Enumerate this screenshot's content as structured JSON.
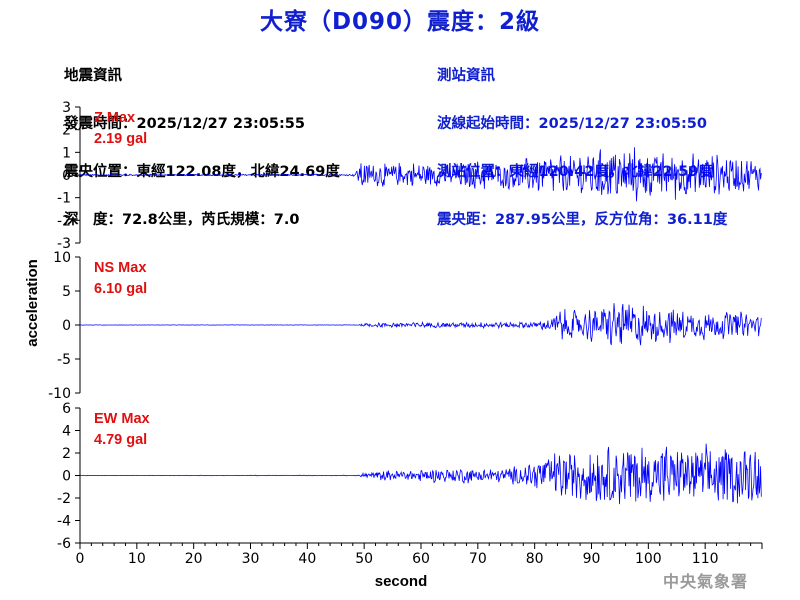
{
  "title": "大寮（D090）震度：2級",
  "quake_info": {
    "heading": "地震資訊",
    "origin_time": "發震時間：2025/12/27 23:05:55",
    "epicenter": "震央位置：東經122.08度，北緯24.69度",
    "depth_magnitude": "深　度：72.8公里，芮氏規模：7.0"
  },
  "station_info": {
    "heading": "測站資訊",
    "wave_start": "波線起始時間：2025/12/27 23:05:50",
    "location": "測站位置：東經120.42度，北緯22.59度",
    "distance_azimuth": "震央距：287.95公里，反方位角：36.11度"
  },
  "watermark": "中央氣象署",
  "colors": {
    "title": "#1020d0",
    "trace": "#0000ff",
    "max_label": "#e01010",
    "axis": "#000000"
  },
  "chart_data": {
    "type": "line",
    "xlabel": "second",
    "ylabel": "acceleration",
    "xlim": [
      0,
      120
    ],
    "x_ticks": [
      0,
      10,
      20,
      30,
      40,
      50,
      60,
      70,
      80,
      90,
      100,
      110
    ],
    "grid": false,
    "panels": [
      {
        "name": "Z",
        "max_label": "Z Max",
        "max_value": "2.19 gal",
        "ylim": [
          -3,
          3
        ],
        "y_ticks": [
          3,
          2,
          1,
          0,
          -1,
          -2,
          -3
        ],
        "envelope": [
          [
            0,
            0.03
          ],
          [
            48,
            0.04
          ],
          [
            48.8,
            0.3
          ],
          [
            49.5,
            0.7
          ],
          [
            55,
            0.6
          ],
          [
            60,
            0.55
          ],
          [
            70,
            0.65
          ],
          [
            78,
            0.75
          ],
          [
            84,
            0.9
          ],
          [
            90,
            1.15
          ],
          [
            95,
            1.35
          ],
          [
            100,
            1.2
          ],
          [
            108,
            1.0
          ],
          [
            115,
            0.85
          ],
          [
            120,
            0.7
          ]
        ]
      },
      {
        "name": "NS",
        "max_label": "NS Max",
        "max_value": "6.10 gal",
        "ylim": [
          -10,
          10
        ],
        "y_ticks": [
          10,
          5,
          0,
          -5,
          -10
        ],
        "envelope": [
          [
            0,
            0.02
          ],
          [
            49,
            0.03
          ],
          [
            50,
            0.3
          ],
          [
            56,
            0.45
          ],
          [
            65,
            0.4
          ],
          [
            72,
            0.45
          ],
          [
            80,
            0.5
          ],
          [
            82,
            1.0
          ],
          [
            84,
            2.2
          ],
          [
            88,
            2.4
          ],
          [
            93,
            3.2
          ],
          [
            96,
            4.0
          ],
          [
            100,
            3.2
          ],
          [
            106,
            2.6
          ],
          [
            112,
            2.2
          ],
          [
            120,
            1.8
          ]
        ]
      },
      {
        "name": "EW",
        "max_label": "EW Max",
        "max_value": "4.79 gal",
        "ylim": [
          -6,
          6
        ],
        "y_ticks": [
          6,
          4,
          2,
          0,
          -2,
          -4,
          -6
        ],
        "envelope": [
          [
            0,
            0.02
          ],
          [
            49,
            0.03
          ],
          [
            50,
            0.3
          ],
          [
            55,
            0.5
          ],
          [
            60,
            0.6
          ],
          [
            70,
            0.75
          ],
          [
            78,
            0.9
          ],
          [
            81,
            1.6
          ],
          [
            84,
            2.2
          ],
          [
            88,
            2.5
          ],
          [
            93,
            2.8
          ],
          [
            96,
            3.2
          ],
          [
            100,
            2.8
          ],
          [
            106,
            2.8
          ],
          [
            112,
            2.7
          ],
          [
            117,
            2.9
          ],
          [
            120,
            2.6
          ]
        ]
      }
    ]
  }
}
